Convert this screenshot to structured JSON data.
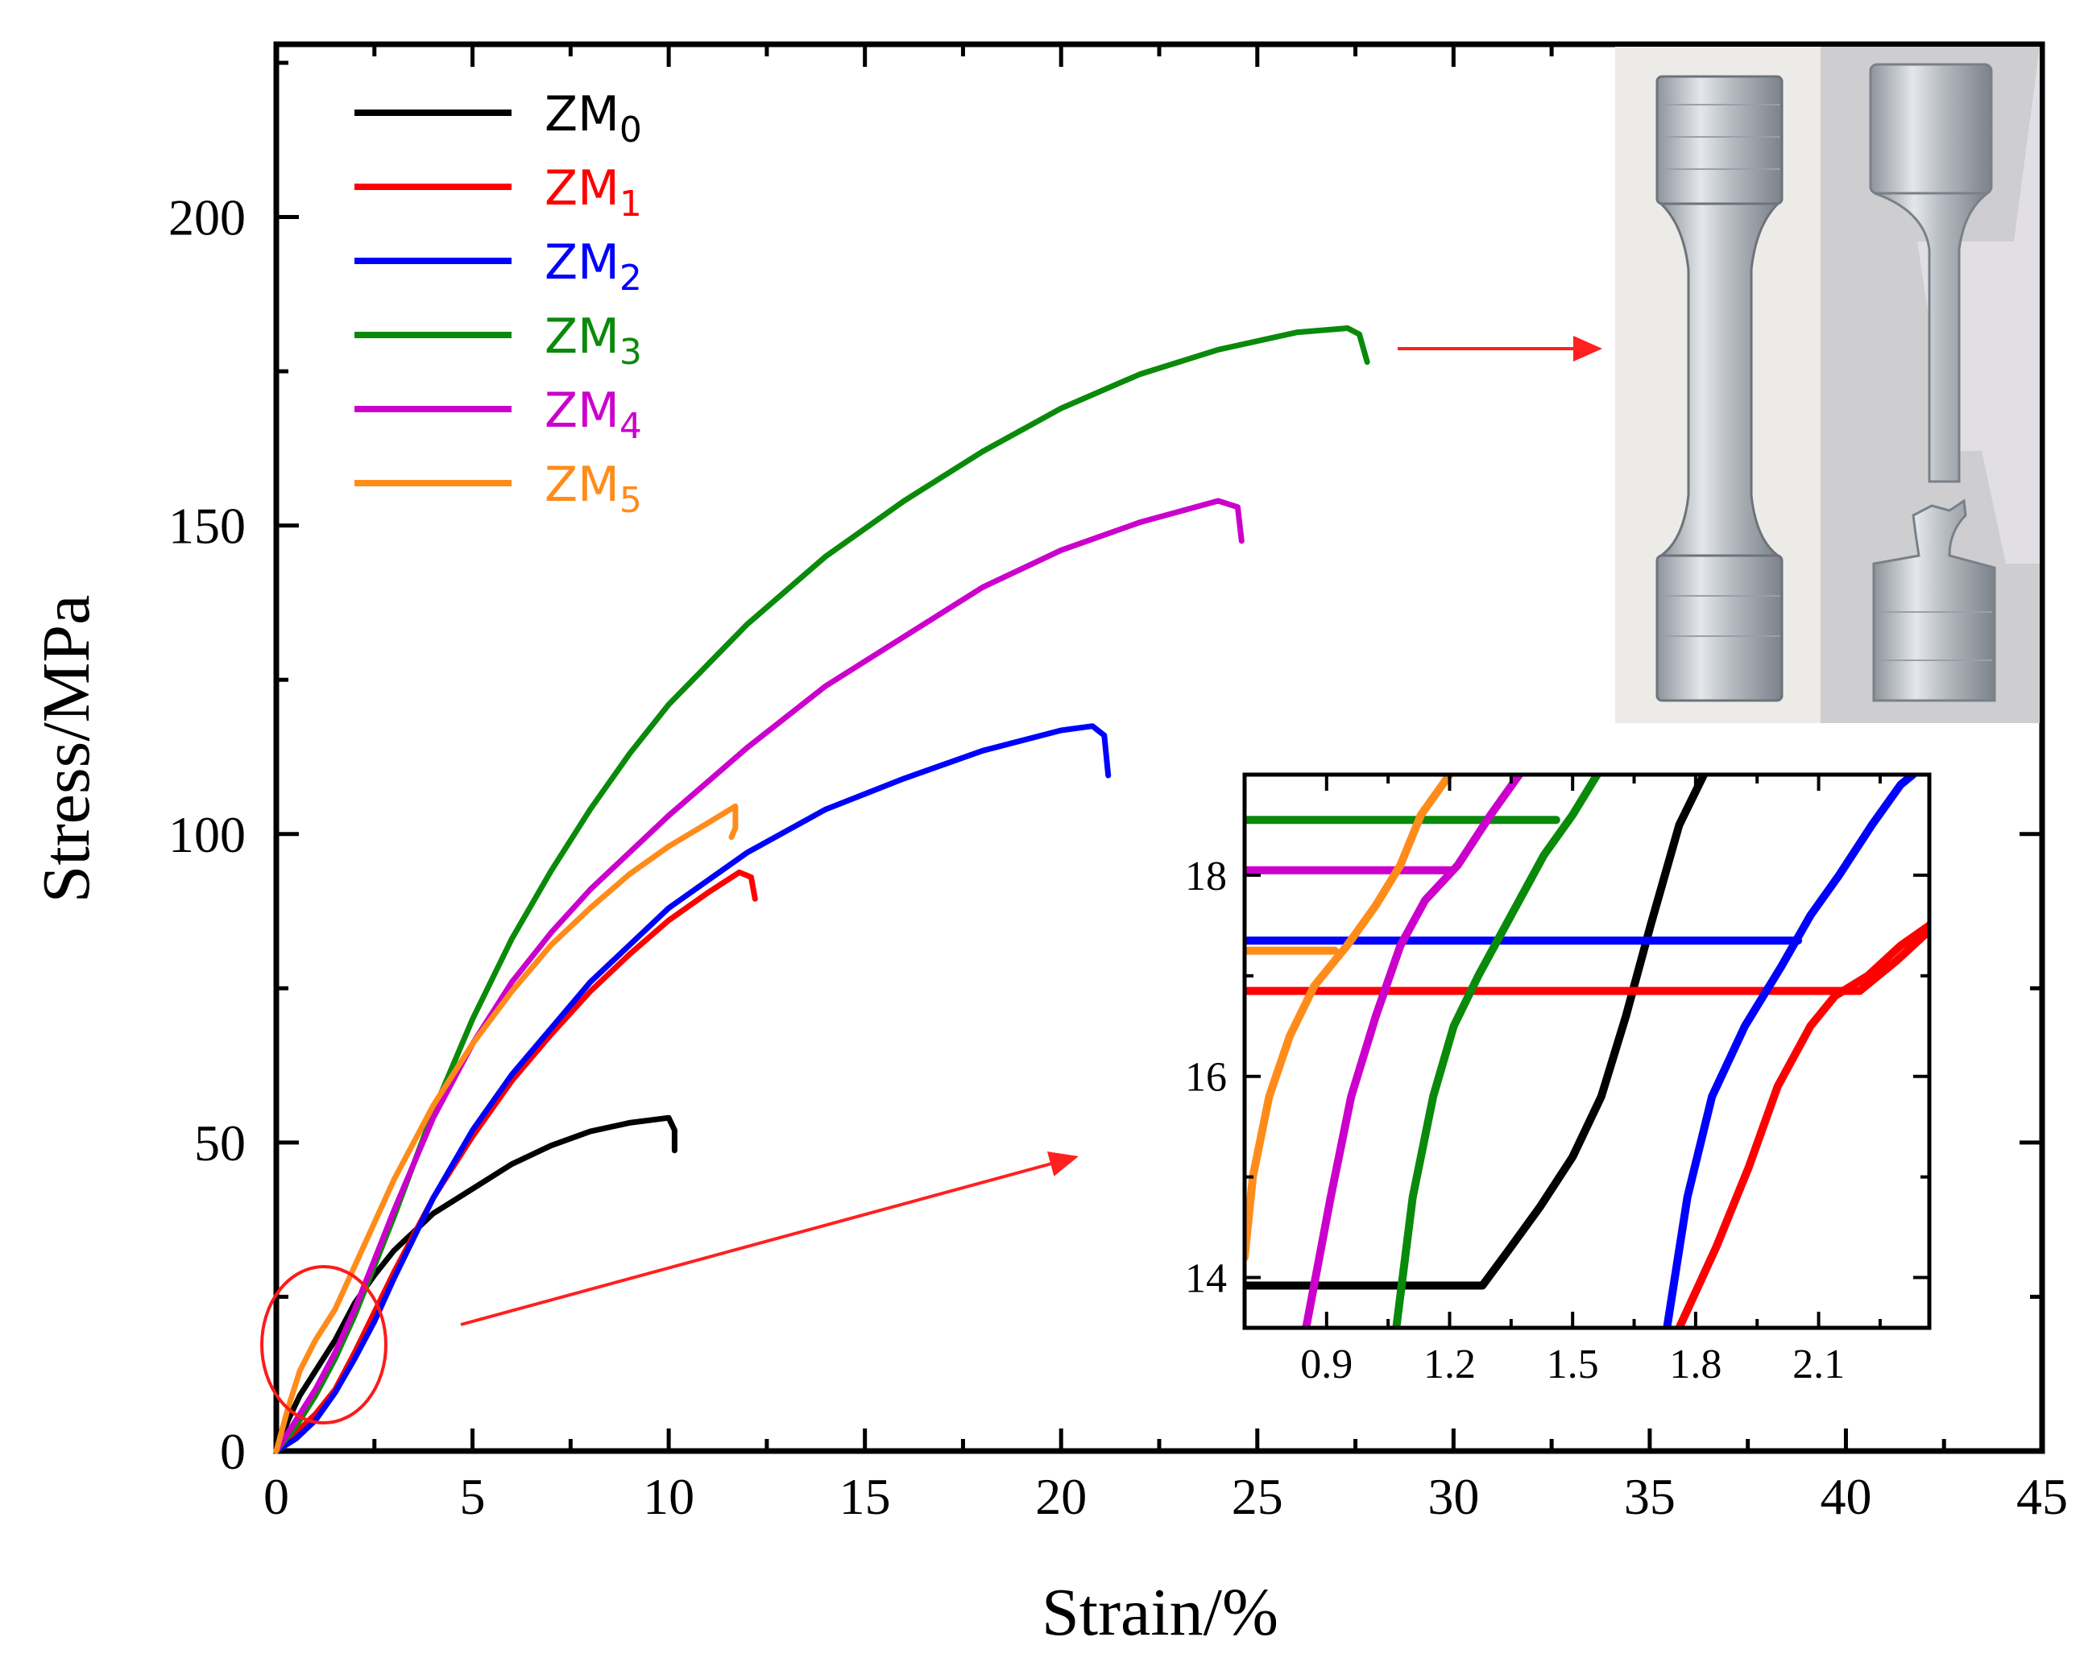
{
  "chart_data": {
    "type": "line",
    "xlabel": "Strain/%",
    "ylabel": "Stress/MPa",
    "xlim": [
      0,
      45
    ],
    "ylim": [
      0,
      228
    ],
    "xticks": [
      0,
      5,
      10,
      15,
      20,
      25,
      30,
      35,
      40,
      45
    ],
    "yticks": [
      0,
      50,
      100,
      150,
      200
    ],
    "legend_position": "top-left",
    "series": [
      {
        "name": "ZM0",
        "base": "ZM",
        "sub": "0",
        "color": "#000000",
        "points": [
          [
            0,
            0
          ],
          [
            0.3,
            5
          ],
          [
            0.6,
            9
          ],
          [
            1.0,
            13
          ],
          [
            1.5,
            18
          ],
          [
            2,
            24
          ],
          [
            2.5,
            28.5
          ],
          [
            3,
            32.5
          ],
          [
            4,
            38.5
          ],
          [
            5,
            42.5
          ],
          [
            6,
            46.5
          ],
          [
            7,
            49.5
          ],
          [
            8,
            51.8
          ],
          [
            9,
            53.2
          ],
          [
            10,
            54
          ],
          [
            10.15,
            52
          ],
          [
            10.15,
            48.7
          ]
        ]
      },
      {
        "name": "ZM1",
        "base": "ZM",
        "sub": "1",
        "color": "#ff0000",
        "points": [
          [
            0,
            0
          ],
          [
            0.5,
            3
          ],
          [
            1,
            6
          ],
          [
            1.5,
            10
          ],
          [
            2,
            16
          ],
          [
            2.5,
            22.5
          ],
          [
            3,
            29
          ],
          [
            4,
            41
          ],
          [
            5,
            51
          ],
          [
            6,
            60
          ],
          [
            7,
            67.5
          ],
          [
            8,
            74.5
          ],
          [
            9,
            80.5
          ],
          [
            10,
            86
          ],
          [
            11,
            90.5
          ],
          [
            11.8,
            93.8
          ],
          [
            12.1,
            93
          ],
          [
            12.2,
            89.5
          ]
        ]
      },
      {
        "name": "ZM2",
        "base": "ZM",
        "sub": "2",
        "color": "#0000ff",
        "points": [
          [
            0,
            0
          ],
          [
            0.5,
            2
          ],
          [
            1,
            5
          ],
          [
            1.5,
            9.5
          ],
          [
            2,
            15
          ],
          [
            2.5,
            21
          ],
          [
            3,
            28
          ],
          [
            4,
            41
          ],
          [
            5,
            52
          ],
          [
            6,
            61
          ],
          [
            8,
            76
          ],
          [
            10,
            88
          ],
          [
            12,
            97
          ],
          [
            14,
            104
          ],
          [
            16,
            109
          ],
          [
            18,
            113.5
          ],
          [
            20,
            116.8
          ],
          [
            20.8,
            117.5
          ],
          [
            21.1,
            116
          ],
          [
            21.2,
            109.5
          ]
        ]
      },
      {
        "name": "ZM3",
        "base": "ZM",
        "sub": "3",
        "color": "#0a8a0a",
        "points": [
          [
            0,
            0
          ],
          [
            0.5,
            4
          ],
          [
            1,
            9
          ],
          [
            1.5,
            15
          ],
          [
            2,
            22
          ],
          [
            2.5,
            30
          ],
          [
            3,
            38
          ],
          [
            4,
            55
          ],
          [
            5,
            70
          ],
          [
            6,
            83
          ],
          [
            7,
            94
          ],
          [
            8,
            104
          ],
          [
            9,
            113
          ],
          [
            10,
            121
          ],
          [
            12,
            134
          ],
          [
            14,
            145
          ],
          [
            16,
            154
          ],
          [
            18,
            162
          ],
          [
            20,
            169
          ],
          [
            22,
            174.5
          ],
          [
            24,
            178.5
          ],
          [
            26,
            181.3
          ],
          [
            27.3,
            182
          ],
          [
            27.6,
            181
          ],
          [
            27.8,
            176.5
          ]
        ]
      },
      {
        "name": "ZM4",
        "base": "ZM",
        "sub": "4",
        "color": "#cc00cc",
        "points": [
          [
            0,
            0
          ],
          [
            0.5,
            5
          ],
          [
            1,
            10
          ],
          [
            1.5,
            16
          ],
          [
            2,
            23
          ],
          [
            2.5,
            31
          ],
          [
            3,
            39
          ],
          [
            4,
            54
          ],
          [
            5,
            66
          ],
          [
            6,
            76
          ],
          [
            7,
            84
          ],
          [
            8,
            91
          ],
          [
            10,
            103
          ],
          [
            12,
            114
          ],
          [
            14,
            124
          ],
          [
            16,
            132
          ],
          [
            18,
            140
          ],
          [
            20,
            146
          ],
          [
            22,
            150.5
          ],
          [
            24,
            154
          ],
          [
            24.5,
            153
          ],
          [
            24.6,
            147.5
          ]
        ]
      },
      {
        "name": "ZM5",
        "base": "ZM",
        "sub": "5",
        "color": "#ff8c1a",
        "points": [
          [
            0,
            0
          ],
          [
            0.3,
            7
          ],
          [
            0.6,
            13
          ],
          [
            1,
            18
          ],
          [
            1.5,
            23
          ],
          [
            2,
            30
          ],
          [
            2.5,
            37
          ],
          [
            3,
            44
          ],
          [
            4,
            56
          ],
          [
            5,
            66
          ],
          [
            6,
            74.5
          ],
          [
            7,
            82
          ],
          [
            8,
            88
          ],
          [
            9,
            93.5
          ],
          [
            10,
            98
          ],
          [
            11,
            101.8
          ],
          [
            11.7,
            104.5
          ],
          [
            11.7,
            101
          ],
          [
            11.6,
            99.5
          ]
        ]
      }
    ],
    "annotations": [
      "arrow: highlighted region (ellipse near origin) to inset",
      "arrow: ZM3 fracture point to specimen photo"
    ]
  },
  "inset": {
    "xlim": [
      0.7,
      2.37
    ],
    "ylim": [
      13.5,
      19.0
    ],
    "xticks": [
      "0.9",
      "1.2",
      "1.5",
      "1.8",
      "2.1"
    ],
    "yticks": [
      "14",
      "16",
      "18"
    ],
    "series": [
      {
        "name": "ZM0",
        "color": "#000000",
        "points": [
          [
            0.7,
            13.92
          ],
          [
            1.28,
            13.92
          ],
          [
            1.34,
            14.25
          ],
          [
            1.42,
            14.7
          ],
          [
            1.5,
            15.2
          ],
          [
            1.57,
            15.8
          ],
          [
            1.63,
            16.6
          ],
          [
            1.69,
            17.5
          ],
          [
            1.76,
            18.5
          ],
          [
            1.82,
            19.0
          ]
        ]
      },
      {
        "name": "ZM1",
        "color": "#ff0000",
        "points": [
          [
            0.7,
            16.85
          ],
          [
            2.2,
            16.85
          ],
          [
            2.29,
            17.15
          ],
          [
            2.37,
            17.45
          ]
        ]
      },
      {
        "name": "ZM1-rise",
        "color": "#ff0000",
        "points": [
          [
            1.76,
            13.5
          ],
          [
            1.85,
            14.3
          ],
          [
            1.93,
            15.1
          ],
          [
            2.0,
            15.9
          ],
          [
            2.08,
            16.5
          ],
          [
            2.14,
            16.8
          ],
          [
            2.22,
            17.0
          ],
          [
            2.3,
            17.3
          ],
          [
            2.37,
            17.5
          ]
        ]
      },
      {
        "name": "ZM2",
        "color": "#0000ff",
        "points": [
          [
            0.7,
            17.35
          ],
          [
            2.05,
            17.35
          ]
        ]
      },
      {
        "name": "ZM2-rise",
        "color": "#0000ff",
        "points": [
          [
            1.73,
            13.5
          ],
          [
            1.78,
            14.8
          ],
          [
            1.84,
            15.8
          ],
          [
            1.92,
            16.5
          ],
          [
            2.01,
            17.1
          ],
          [
            2.08,
            17.6
          ],
          [
            2.15,
            18.0
          ],
          [
            2.23,
            18.5
          ],
          [
            2.3,
            18.9
          ],
          [
            2.33,
            19.0
          ]
        ]
      },
      {
        "name": "ZM3",
        "color": "#0a8a0a",
        "points": [
          [
            0.7,
            18.55
          ],
          [
            1.46,
            18.55
          ]
        ]
      },
      {
        "name": "ZM3-rise",
        "color": "#0a8a0a",
        "points": [
          [
            1.07,
            13.5
          ],
          [
            1.11,
            14.8
          ],
          [
            1.16,
            15.8
          ],
          [
            1.21,
            16.5
          ],
          [
            1.27,
            17.0
          ],
          [
            1.35,
            17.6
          ],
          [
            1.43,
            18.2
          ],
          [
            1.5,
            18.6
          ],
          [
            1.56,
            19.0
          ]
        ]
      },
      {
        "name": "ZM4",
        "color": "#cc00cc",
        "points": [
          [
            0.7,
            18.05
          ],
          [
            1.2,
            18.05
          ]
        ]
      },
      {
        "name": "ZM4-rise",
        "color": "#cc00cc",
        "points": [
          [
            0.85,
            13.5
          ],
          [
            0.91,
            14.8
          ],
          [
            0.96,
            15.8
          ],
          [
            1.02,
            16.6
          ],
          [
            1.08,
            17.3
          ],
          [
            1.14,
            17.75
          ],
          [
            1.22,
            18.1
          ],
          [
            1.3,
            18.6
          ],
          [
            1.37,
            19.0
          ]
        ]
      },
      {
        "name": "ZM5",
        "color": "#ff8c1a",
        "points": [
          [
            0.7,
            17.25
          ],
          [
            0.92,
            17.25
          ]
        ]
      },
      {
        "name": "ZM5-rise",
        "color": "#ff8c1a",
        "points": [
          [
            0.7,
            14.2
          ],
          [
            0.72,
            15.0
          ],
          [
            0.76,
            15.8
          ],
          [
            0.81,
            16.4
          ],
          [
            0.87,
            16.9
          ],
          [
            0.95,
            17.3
          ],
          [
            1.02,
            17.7
          ],
          [
            1.08,
            18.1
          ],
          [
            1.13,
            18.6
          ],
          [
            1.2,
            19.0
          ]
        ]
      }
    ]
  },
  "photo": {
    "description_name": "fractured tensile specimen photo"
  }
}
